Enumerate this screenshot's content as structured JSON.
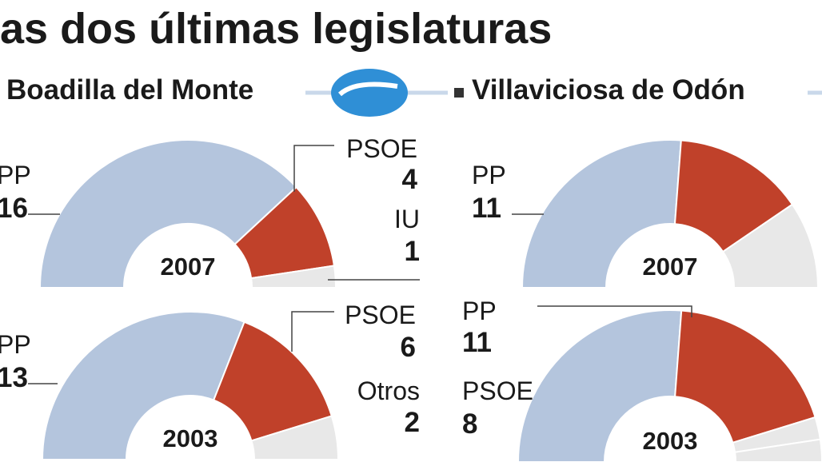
{
  "header": {
    "title": "as dos últimas legislaturas"
  },
  "sections": [
    "Boadilla del Monte",
    "Villaviciosa de Odón"
  ],
  "chart_data": [
    {
      "type": "pie",
      "title": "2007",
      "categories": [
        "PP",
        "PSOE",
        "IU"
      ],
      "values": [
        16,
        4,
        1
      ],
      "colors": [
        "#b4c5dd",
        "#c0412a",
        "#e8e8e8"
      ]
    },
    {
      "type": "pie",
      "title": "2003",
      "categories": [
        "PP",
        "PSOE",
        "Otros"
      ],
      "values": [
        13,
        6,
        2
      ],
      "colors": [
        "#b4c5dd",
        "#c0412a",
        "#e8e8e8"
      ]
    },
    {
      "type": "pie",
      "title": "2007",
      "categories": [
        "PP",
        null,
        null
      ],
      "values": [
        11,
        6,
        4
      ],
      "colors": [
        "#b4c5dd",
        "#c0412a",
        "#e8e8e8"
      ]
    },
    {
      "type": "pie",
      "title": "2003",
      "categories": [
        "PP",
        "PSOE",
        null,
        null
      ],
      "values": [
        11,
        8,
        1,
        1
      ],
      "colors": [
        "#b4c5dd",
        "#c0412a",
        "#e8e8e8",
        "#e8e8e8"
      ]
    }
  ]
}
